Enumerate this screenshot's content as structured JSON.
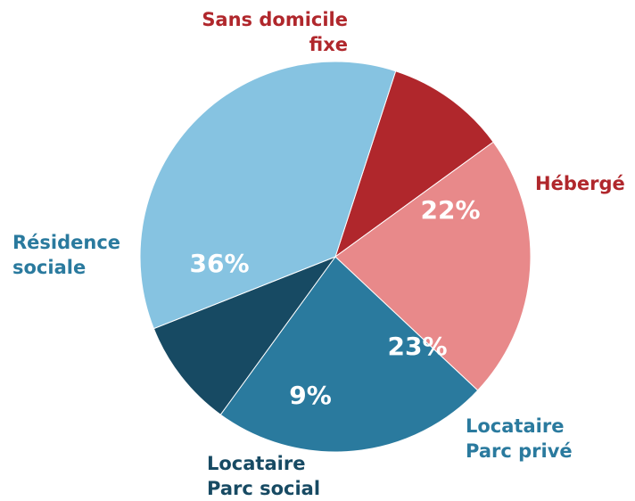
{
  "chart_data": {
    "type": "pie",
    "categories": [
      "Sans domicile fixe",
      "Hébergé",
      "Locataire Parc privé",
      "Locataire Parc social",
      "Résidence sociale"
    ],
    "values": [
      10,
      22,
      23,
      9,
      36
    ],
    "value_labels": [
      "10%",
      "22%",
      "23%",
      "9%",
      "36%"
    ],
    "colors": [
      "#b0272c",
      "#e8898a",
      "#2a7a9e",
      "#174a63",
      "#86c3e1"
    ],
    "label_colors": [
      "#b0272c",
      "#b0272c",
      "#2a7a9e",
      "#174a63",
      "#2a7a9e"
    ]
  }
}
